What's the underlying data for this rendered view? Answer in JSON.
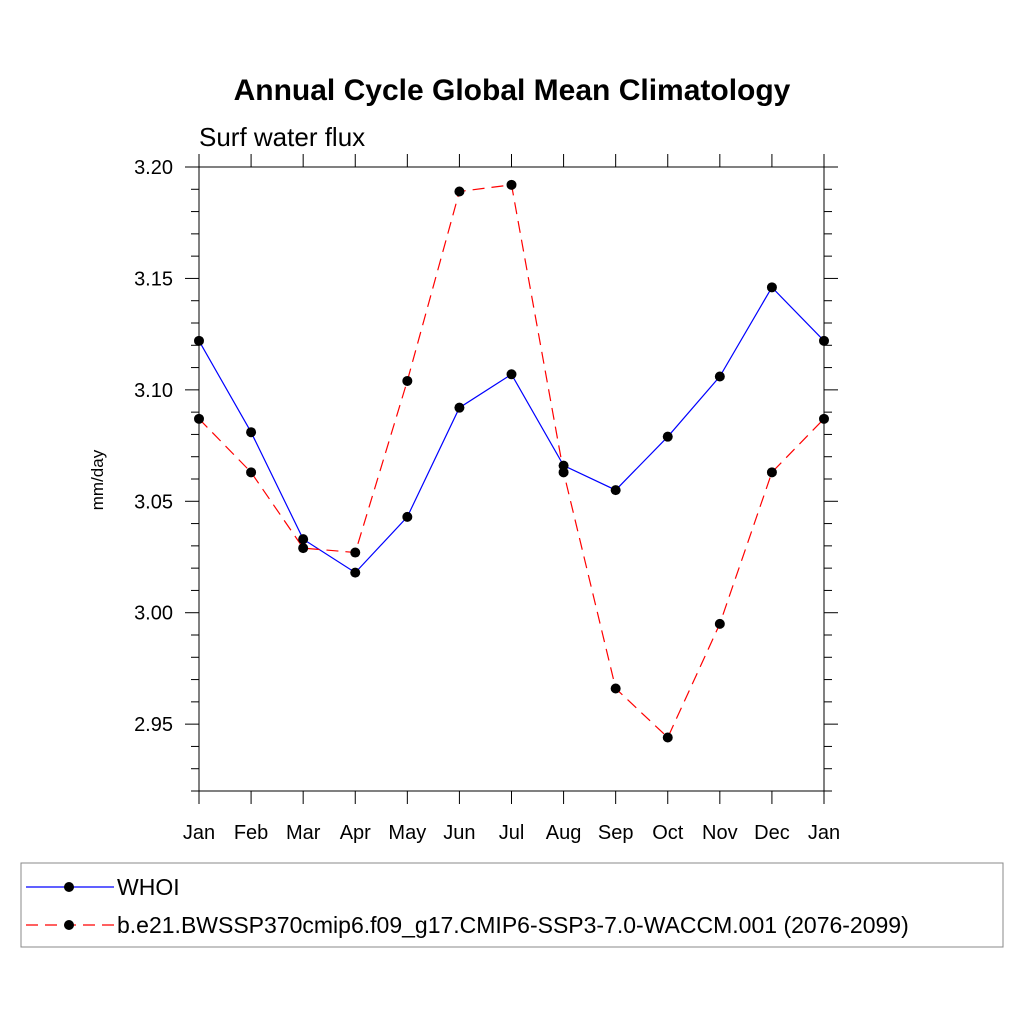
{
  "chart_data": {
    "type": "line",
    "title": "Annual Cycle Global Mean Climatology",
    "subtitle": "Surf water flux",
    "xlabel": "",
    "ylabel": "mm/day",
    "categories": [
      "Jan",
      "Feb",
      "Mar",
      "Apr",
      "May",
      "Jun",
      "Jul",
      "Aug",
      "Sep",
      "Oct",
      "Nov",
      "Dec",
      "Jan"
    ],
    "ylim": [
      2.92,
      3.2
    ],
    "yticks": [
      "3.20",
      "3.15",
      "3.10",
      "3.05",
      "3.00",
      "2.95"
    ],
    "ytick_values": [
      3.2,
      3.15,
      3.1,
      3.05,
      3.0,
      2.95
    ],
    "series": [
      {
        "name": "WHOI",
        "color": "#0000ff",
        "dash": "solid",
        "values": [
          3.122,
          3.081,
          3.033,
          3.018,
          3.043,
          3.092,
          3.107,
          3.066,
          3.055,
          3.079,
          3.106,
          3.146,
          3.122
        ]
      },
      {
        "name": "b.e21.BWSSP370cmip6.f09_g17.CMIP6-SSP3-7.0-WACCM.001 (2076-2099)",
        "color": "#ff0000",
        "dash": "dashed",
        "values": [
          3.087,
          3.063,
          3.029,
          3.027,
          3.104,
          3.189,
          3.192,
          3.063,
          2.966,
          2.944,
          2.995,
          3.063,
          3.087
        ]
      }
    ],
    "legend_position": "bottom"
  }
}
